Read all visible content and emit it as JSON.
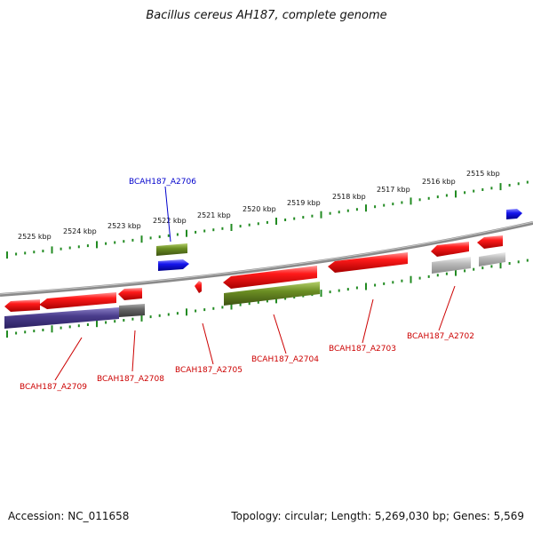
{
  "title": "Bacillus cereus AH187, complete genome",
  "footer": {
    "accession": "Accession: NC_011658",
    "stats": "Topology: circular; Length: 5,269,030 bp; Genes: 5,569"
  },
  "colors": {
    "gene_red": "#ee1111",
    "gene_green": "#6b8e23",
    "gene_blue": "#1111ee",
    "gene_purple": "#4a3d8c",
    "gene_gray": "#999999",
    "backbone": "#777777",
    "tick_green": "#228b22",
    "label_red": "#cc0000",
    "label_blue": "#0000cc"
  },
  "scale_labels": [
    "2525 kbp",
    "2524 kbp",
    "2523 kbp",
    "2522 kbp",
    "2521 kbp",
    "2520 kbp",
    "2519 kbp",
    "2518 kbp",
    "2517 kbp",
    "2516 kbp",
    "2515 kbp"
  ],
  "gene_labels": [
    {
      "name": "BCAH187_A2706",
      "color": "blue"
    },
    {
      "name": "BCAH187_A2709",
      "color": "red"
    },
    {
      "name": "BCAH187_A2708",
      "color": "red"
    },
    {
      "name": "BCAH187_A2705",
      "color": "red"
    },
    {
      "name": "BCAH187_A2704",
      "color": "red"
    },
    {
      "name": "BCAH187_A2703",
      "color": "red"
    },
    {
      "name": "BCAH187_A2702",
      "color": "red"
    }
  ]
}
